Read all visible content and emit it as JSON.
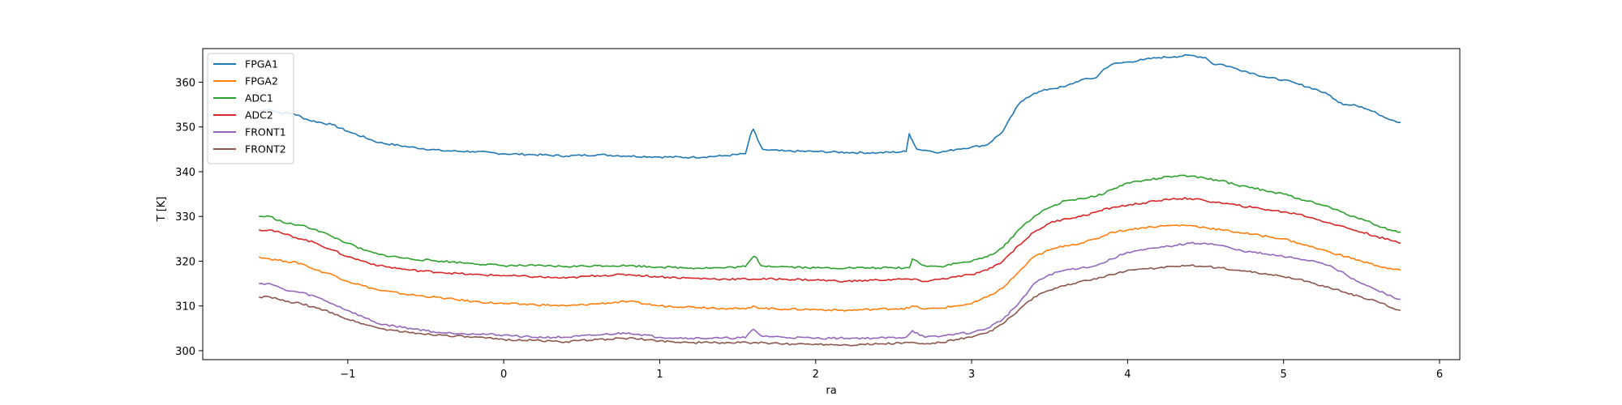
{
  "chart_data": {
    "type": "line",
    "title": "",
    "xlabel": "ra",
    "ylabel": "T [K]",
    "xlim": [
      -1.93,
      6.13
    ],
    "ylim": [
      298,
      367.5
    ],
    "xticks": [
      -1,
      0,
      1,
      2,
      3,
      4,
      5,
      6
    ],
    "yticks": [
      300,
      310,
      320,
      330,
      340,
      350,
      360
    ],
    "xtick_labels": [
      "−1",
      "0",
      "1",
      "2",
      "3",
      "4",
      "5",
      "6"
    ],
    "ytick_labels": [
      "300",
      "310",
      "320",
      "330",
      "340",
      "350",
      "360"
    ],
    "grid": false,
    "legend_position": "upper-left",
    "series": [
      {
        "name": "FPGA1",
        "color": "#1f77b4",
        "x": [
          -1.57,
          -1.5,
          -1.45,
          -1.35,
          -1.25,
          -1.1,
          -1.0,
          -0.8,
          -0.6,
          -0.4,
          -0.2,
          0.0,
          0.2,
          0.4,
          0.6,
          0.8,
          1.0,
          1.2,
          1.4,
          1.55,
          1.58,
          1.6,
          1.63,
          1.66,
          1.7,
          1.8,
          2.0,
          2.2,
          2.4,
          2.58,
          2.6,
          2.62,
          2.65,
          2.7,
          2.8,
          2.9,
          3.0,
          3.1,
          3.2,
          3.3,
          3.35,
          3.4,
          3.5,
          3.6,
          3.7,
          3.8,
          3.85,
          3.9,
          4.0,
          4.1,
          4.2,
          4.3,
          4.4,
          4.5,
          4.55,
          4.6,
          4.7,
          4.8,
          4.9,
          5.0,
          5.1,
          5.2,
          5.3,
          5.35,
          5.4,
          5.45,
          5.5,
          5.6,
          5.7,
          5.75
        ],
        "y": [
          353.5,
          354.0,
          353.2,
          353.0,
          351.5,
          350.5,
          349.0,
          346.5,
          345.5,
          344.7,
          344.5,
          344.0,
          343.8,
          343.5,
          343.8,
          343.5,
          343.3,
          343.2,
          343.5,
          344.0,
          348.0,
          349.5,
          347.0,
          345.0,
          344.8,
          344.6,
          344.5,
          344.3,
          344.2,
          344.5,
          348.5,
          347.0,
          345.0,
          344.8,
          344.3,
          345.0,
          345.5,
          346.0,
          349.0,
          355.0,
          356.5,
          357.5,
          358.5,
          359.0,
          360.5,
          361.0,
          363.0,
          364.0,
          364.5,
          365.0,
          365.5,
          365.7,
          366.0,
          365.5,
          364.0,
          364.0,
          363.0,
          362.0,
          361.0,
          360.5,
          359.5,
          358.5,
          357.0,
          355.5,
          355.0,
          355.0,
          354.5,
          353.0,
          351.5,
          351.0
        ]
      },
      {
        "name": "FPGA2",
        "color": "#ff7f0e",
        "x": [
          -1.57,
          -1.5,
          -1.4,
          -1.3,
          -1.2,
          -1.1,
          -1.0,
          -0.9,
          -0.8,
          -0.6,
          -0.4,
          -0.2,
          0.0,
          0.2,
          0.4,
          0.6,
          0.8,
          1.0,
          1.2,
          1.4,
          1.55,
          1.6,
          1.65,
          1.8,
          2.0,
          2.2,
          2.4,
          2.6,
          2.62,
          2.7,
          2.8,
          2.9,
          3.0,
          3.1,
          3.2,
          3.3,
          3.4,
          3.5,
          3.6,
          3.7,
          3.8,
          3.9,
          4.0,
          4.1,
          4.2,
          4.3,
          4.4,
          4.5,
          4.6,
          4.7,
          4.8,
          4.9,
          5.0,
          5.1,
          5.2,
          5.3,
          5.4,
          5.5,
          5.6,
          5.7,
          5.75
        ],
        "y": [
          321.0,
          320.5,
          320.0,
          319.5,
          318.0,
          317.0,
          315.5,
          314.5,
          313.5,
          312.5,
          311.8,
          311.0,
          310.5,
          310.3,
          310.0,
          310.5,
          311.0,
          310.0,
          309.8,
          309.5,
          309.3,
          310.0,
          309.5,
          309.3,
          309.2,
          309.0,
          309.3,
          309.5,
          310.0,
          309.3,
          309.5,
          310.0,
          310.5,
          312.0,
          314.0,
          317.5,
          321.0,
          322.5,
          323.5,
          324.0,
          325.0,
          326.5,
          327.0,
          327.5,
          327.8,
          328.0,
          328.0,
          327.5,
          327.0,
          326.5,
          326.0,
          325.5,
          325.0,
          324.0,
          323.0,
          322.0,
          321.0,
          320.0,
          319.0,
          318.2,
          318.0
        ]
      },
      {
        "name": "ADC1",
        "color": "#2ca02c",
        "x": [
          -1.57,
          -1.5,
          -1.4,
          -1.3,
          -1.2,
          -1.1,
          -1.0,
          -0.9,
          -0.8,
          -0.6,
          -0.4,
          -0.2,
          0.0,
          0.2,
          0.4,
          0.6,
          0.8,
          1.0,
          1.2,
          1.4,
          1.55,
          1.6,
          1.62,
          1.65,
          1.8,
          2.0,
          2.2,
          2.4,
          2.6,
          2.62,
          2.7,
          2.8,
          2.9,
          3.0,
          3.1,
          3.2,
          3.3,
          3.4,
          3.5,
          3.6,
          3.7,
          3.8,
          3.9,
          4.0,
          4.1,
          4.2,
          4.3,
          4.4,
          4.5,
          4.6,
          4.7,
          4.8,
          4.9,
          5.0,
          5.1,
          5.2,
          5.3,
          5.4,
          5.5,
          5.6,
          5.7,
          5.75
        ],
        "y": [
          330.0,
          330.0,
          328.5,
          328.0,
          327.0,
          325.5,
          324.0,
          322.5,
          321.5,
          320.5,
          320.0,
          319.5,
          319.0,
          319.0,
          318.8,
          319.0,
          319.0,
          318.7,
          318.5,
          318.5,
          318.8,
          321.0,
          320.8,
          319.0,
          318.8,
          318.5,
          318.5,
          318.5,
          318.5,
          320.5,
          319.0,
          318.8,
          319.5,
          320.0,
          321.0,
          323.0,
          327.0,
          330.0,
          332.0,
          333.5,
          334.0,
          334.5,
          336.0,
          337.5,
          338.0,
          338.5,
          339.0,
          339.0,
          338.5,
          338.0,
          337.0,
          336.5,
          335.5,
          335.0,
          334.0,
          333.0,
          332.0,
          330.5,
          329.5,
          328.0,
          326.8,
          326.5
        ]
      },
      {
        "name": "ADC2",
        "color": "#d62728",
        "x": [
          -1.57,
          -1.5,
          -1.4,
          -1.3,
          -1.2,
          -1.1,
          -1.0,
          -0.9,
          -0.8,
          -0.6,
          -0.4,
          -0.2,
          0.0,
          0.2,
          0.4,
          0.6,
          0.8,
          1.0,
          1.2,
          1.4,
          1.6,
          1.8,
          2.0,
          2.2,
          2.4,
          2.6,
          2.7,
          2.8,
          2.9,
          3.0,
          3.1,
          3.2,
          3.3,
          3.4,
          3.5,
          3.6,
          3.7,
          3.8,
          3.9,
          4.0,
          4.1,
          4.2,
          4.3,
          4.4,
          4.5,
          4.6,
          4.7,
          4.8,
          4.9,
          5.0,
          5.1,
          5.2,
          5.3,
          5.4,
          5.5,
          5.6,
          5.7,
          5.75
        ],
        "y": [
          327.0,
          327.0,
          326.0,
          325.0,
          324.0,
          322.5,
          321.0,
          320.0,
          319.0,
          318.0,
          317.5,
          317.0,
          316.8,
          316.5,
          316.2,
          316.8,
          317.0,
          316.5,
          316.2,
          316.0,
          316.0,
          316.0,
          315.8,
          315.5,
          315.8,
          316.0,
          315.5,
          316.0,
          316.5,
          317.0,
          318.0,
          320.0,
          323.5,
          326.5,
          328.5,
          329.5,
          330.0,
          331.0,
          332.0,
          332.5,
          333.0,
          333.5,
          334.0,
          334.0,
          333.5,
          333.0,
          332.5,
          332.0,
          331.5,
          331.0,
          330.5,
          329.5,
          328.5,
          327.5,
          326.5,
          325.5,
          324.5,
          324.0
        ]
      },
      {
        "name": "FRONT1",
        "color": "#9467bd",
        "x": [
          -1.57,
          -1.5,
          -1.4,
          -1.3,
          -1.2,
          -1.1,
          -1.0,
          -0.9,
          -0.8,
          -0.6,
          -0.4,
          -0.2,
          0.0,
          0.2,
          0.4,
          0.6,
          0.8,
          1.0,
          1.2,
          1.4,
          1.55,
          1.6,
          1.65,
          1.8,
          2.0,
          2.2,
          2.4,
          2.58,
          2.62,
          2.7,
          2.8,
          2.9,
          3.0,
          3.1,
          3.2,
          3.3,
          3.4,
          3.5,
          3.6,
          3.7,
          3.8,
          3.9,
          4.0,
          4.1,
          4.2,
          4.3,
          4.4,
          4.5,
          4.6,
          4.7,
          4.8,
          4.9,
          5.0,
          5.1,
          5.2,
          5.3,
          5.4,
          5.5,
          5.6,
          5.7,
          5.75
        ],
        "y": [
          315.0,
          315.0,
          313.5,
          313.0,
          312.0,
          310.5,
          309.0,
          307.5,
          306.0,
          305.0,
          304.0,
          303.8,
          303.5,
          303.0,
          303.0,
          303.5,
          304.0,
          303.0,
          302.8,
          302.8,
          302.9,
          304.8,
          303.3,
          303.0,
          302.8,
          302.8,
          302.8,
          303.0,
          304.5,
          303.0,
          303.2,
          303.8,
          304.0,
          305.0,
          307.0,
          310.5,
          315.0,
          317.0,
          318.0,
          318.5,
          319.0,
          320.5,
          322.0,
          322.5,
          323.0,
          323.5,
          324.0,
          324.0,
          323.5,
          322.5,
          322.0,
          321.5,
          321.0,
          320.5,
          320.0,
          319.0,
          317.0,
          315.0,
          313.5,
          312.0,
          311.5
        ]
      },
      {
        "name": "FRONT2",
        "color": "#8c564b",
        "x": [
          -1.57,
          -1.5,
          -1.4,
          -1.3,
          -1.2,
          -1.1,
          -1.0,
          -0.9,
          -0.8,
          -0.6,
          -0.4,
          -0.2,
          0.0,
          0.2,
          0.4,
          0.6,
          0.8,
          1.0,
          1.2,
          1.4,
          1.6,
          1.8,
          2.0,
          2.2,
          2.4,
          2.6,
          2.7,
          2.8,
          2.9,
          3.0,
          3.1,
          3.2,
          3.3,
          3.4,
          3.5,
          3.6,
          3.7,
          3.8,
          3.9,
          4.0,
          4.1,
          4.2,
          4.3,
          4.4,
          4.5,
          4.6,
          4.7,
          4.8,
          4.9,
          5.0,
          5.1,
          5.2,
          5.3,
          5.4,
          5.5,
          5.6,
          5.7,
          5.75
        ],
        "y": [
          312.0,
          312.0,
          311.0,
          310.5,
          309.5,
          308.5,
          307.0,
          306.0,
          305.0,
          304.0,
          303.5,
          303.0,
          302.5,
          302.3,
          302.0,
          302.5,
          302.8,
          302.2,
          301.8,
          301.8,
          301.8,
          301.5,
          301.5,
          301.3,
          301.5,
          301.8,
          301.5,
          301.8,
          302.5,
          303.0,
          304.0,
          306.0,
          309.0,
          312.0,
          313.5,
          314.5,
          315.5,
          316.0,
          317.0,
          318.0,
          318.3,
          318.5,
          318.8,
          319.0,
          318.8,
          318.5,
          318.0,
          317.5,
          317.0,
          316.5,
          316.0,
          315.0,
          314.0,
          313.0,
          312.0,
          311.0,
          309.5,
          309.0
        ]
      }
    ]
  }
}
